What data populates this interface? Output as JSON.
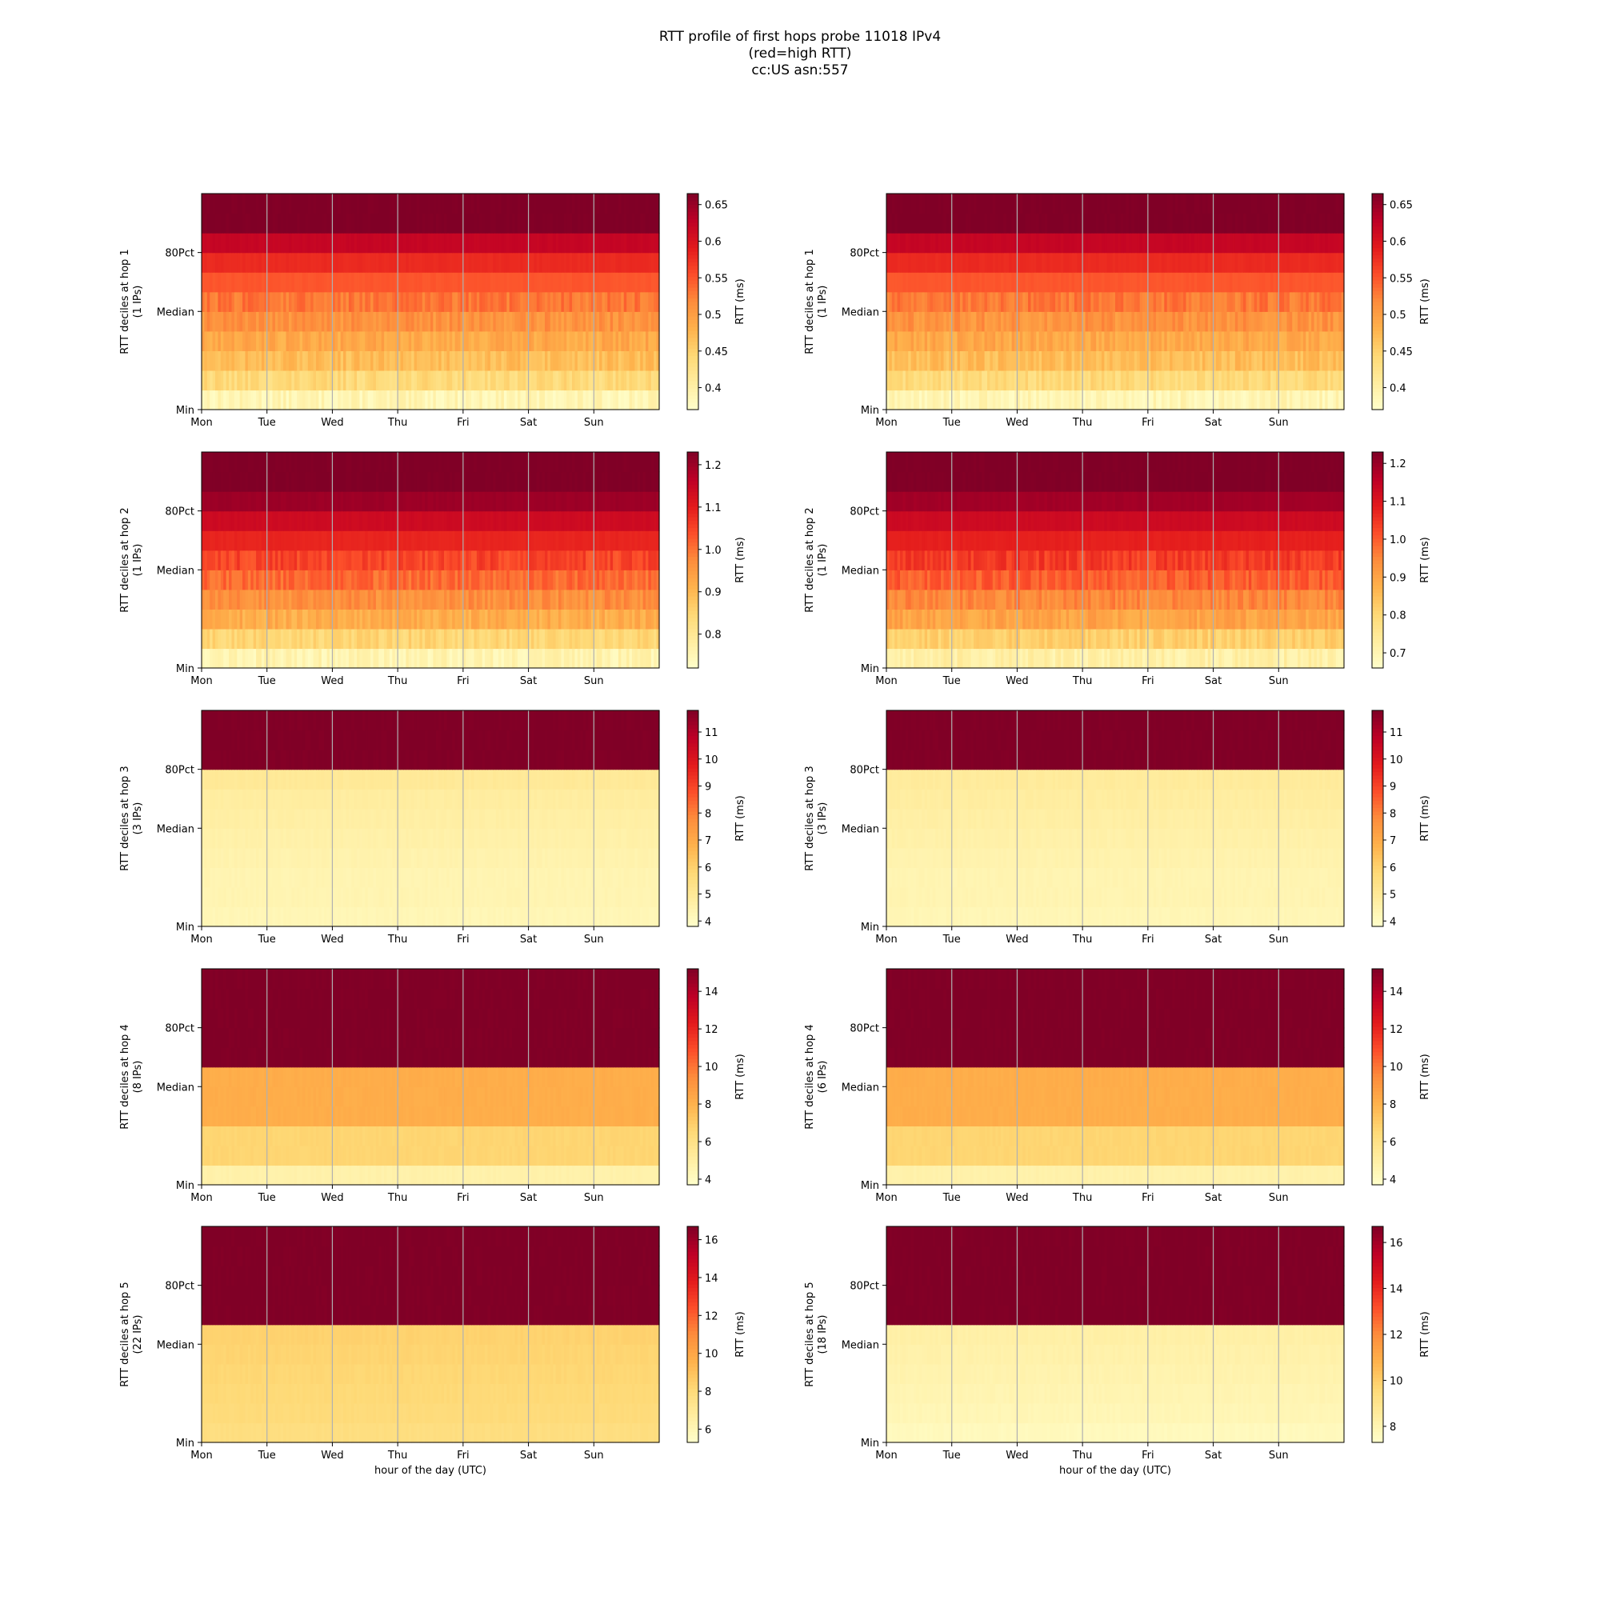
{
  "figure": {
    "title_lines": [
      "RTT profile of first hops probe 11018 IPv4",
      "(red=high RTT)",
      "cc:US asn:557"
    ]
  },
  "colorscale": {
    "name": "YlOrRd",
    "stops": [
      "#ffffcc",
      "#ffeda0",
      "#fed976",
      "#feb24c",
      "#fd8d3c",
      "#fc4e2a",
      "#e31a1c",
      "#bd0026",
      "#800026"
    ]
  },
  "chart_data": [
    {
      "type": "heatmap",
      "ylabel": "RTT deciles at hop 1",
      "ylabel2": "(1 IPs)",
      "colorbar_label": "RTT (ms)",
      "colorbar_ticks": [
        0.4,
        0.45,
        0.5,
        0.55,
        0.6,
        0.65
      ],
      "vmin": 0.37,
      "vmax": 0.665,
      "xticks": [
        "Mon",
        "Tue",
        "Wed",
        "Thu",
        "Fri",
        "Sat",
        "Sun"
      ],
      "yticks": [
        "Min",
        "Median",
        "80Pct"
      ],
      "xlabel": "",
      "decile_values": [
        0.39,
        0.44,
        0.47,
        0.49,
        0.51,
        0.53,
        0.55,
        0.58,
        0.62,
        0.665,
        0.665
      ]
    },
    {
      "type": "heatmap",
      "ylabel": "RTT deciles at hop 1",
      "ylabel2": "(1 IPs)",
      "colorbar_label": "RTT (ms)",
      "colorbar_ticks": [
        0.4,
        0.45,
        0.5,
        0.55,
        0.6,
        0.65
      ],
      "vmin": 0.37,
      "vmax": 0.665,
      "xticks": [
        "Mon",
        "Tue",
        "Wed",
        "Thu",
        "Fri",
        "Sat",
        "Sun"
      ],
      "yticks": [
        "Min",
        "Median",
        "80Pct"
      ],
      "xlabel": "",
      "decile_values": [
        0.39,
        0.44,
        0.47,
        0.49,
        0.51,
        0.53,
        0.55,
        0.58,
        0.62,
        0.665,
        0.665
      ]
    },
    {
      "type": "heatmap",
      "ylabel": "RTT deciles at hop 2",
      "ylabel2": "(1 IPs)",
      "colorbar_label": "RTT (ms)",
      "colorbar_ticks": [
        0.8,
        0.9,
        1.0,
        1.1,
        1.2
      ],
      "vmin": 0.72,
      "vmax": 1.23,
      "xticks": [
        "Mon",
        "Tue",
        "Wed",
        "Thu",
        "Fri",
        "Sat",
        "Sun"
      ],
      "yticks": [
        "Min",
        "Median",
        "80Pct"
      ],
      "xlabel": "",
      "decile_values": [
        0.76,
        0.85,
        0.92,
        0.97,
        1.01,
        1.05,
        1.09,
        1.14,
        1.2,
        1.23,
        1.23
      ]
    },
    {
      "type": "heatmap",
      "ylabel": "RTT deciles at hop 2",
      "ylabel2": "(1 IPs)",
      "colorbar_label": "RTT (ms)",
      "colorbar_ticks": [
        0.7,
        0.8,
        0.9,
        1.0,
        1.1,
        1.2
      ],
      "vmin": 0.66,
      "vmax": 1.23,
      "xticks": [
        "Mon",
        "Tue",
        "Wed",
        "Thu",
        "Fri",
        "Sat",
        "Sun"
      ],
      "yticks": [
        "Min",
        "Median",
        "80Pct"
      ],
      "xlabel": "",
      "decile_values": [
        0.72,
        0.82,
        0.9,
        0.95,
        1.0,
        1.04,
        1.08,
        1.13,
        1.19,
        1.23,
        1.23
      ]
    },
    {
      "type": "heatmap",
      "ylabel": "RTT deciles at hop 3",
      "ylabel2": "(3 IPs)",
      "colorbar_label": "RTT (ms)",
      "colorbar_ticks": [
        4,
        5,
        6,
        7,
        8,
        9,
        10,
        11
      ],
      "vmin": 3.8,
      "vmax": 11.8,
      "xticks": [
        "Mon",
        "Tue",
        "Wed",
        "Thu",
        "Fri",
        "Sat",
        "Sun"
      ],
      "yticks": [
        "Min",
        "Median",
        "80Pct"
      ],
      "xlabel": "",
      "decile_values": [
        4.3,
        4.4,
        4.4,
        4.5,
        4.6,
        4.7,
        4.8,
        5.0,
        11.8,
        11.8,
        11.8
      ]
    },
    {
      "type": "heatmap",
      "ylabel": "RTT deciles at hop 3",
      "ylabel2": "(3 IPs)",
      "colorbar_label": "RTT (ms)",
      "colorbar_ticks": [
        4,
        5,
        6,
        7,
        8,
        9,
        10,
        11
      ],
      "vmin": 3.8,
      "vmax": 11.8,
      "xticks": [
        "Mon",
        "Tue",
        "Wed",
        "Thu",
        "Fri",
        "Sat",
        "Sun"
      ],
      "yticks": [
        "Min",
        "Median",
        "80Pct"
      ],
      "xlabel": "",
      "decile_values": [
        4.3,
        4.4,
        4.4,
        4.5,
        4.6,
        4.7,
        4.8,
        4.9,
        11.8,
        11.8,
        11.8
      ]
    },
    {
      "type": "heatmap",
      "ylabel": "RTT deciles at hop 4",
      "ylabel2": "(8 IPs)",
      "colorbar_label": "RTT (ms)",
      "colorbar_ticks": [
        4,
        6,
        8,
        10,
        12,
        14
      ],
      "vmin": 3.7,
      "vmax": 15.2,
      "xticks": [
        "Mon",
        "Tue",
        "Wed",
        "Thu",
        "Fri",
        "Sat",
        "Sun"
      ],
      "yticks": [
        "Min",
        "Median",
        "80Pct"
      ],
      "xlabel": "",
      "decile_values": [
        4.8,
        6.7,
        6.7,
        8.2,
        8.2,
        8.2,
        15.2,
        15.2,
        15.2,
        15.2,
        15.2
      ]
    },
    {
      "type": "heatmap",
      "ylabel": "RTT deciles at hop 4",
      "ylabel2": "(6 IPs)",
      "colorbar_label": "RTT (ms)",
      "colorbar_ticks": [
        4,
        6,
        8,
        10,
        12,
        14
      ],
      "vmin": 3.7,
      "vmax": 15.2,
      "xticks": [
        "Mon",
        "Tue",
        "Wed",
        "Thu",
        "Fri",
        "Sat",
        "Sun"
      ],
      "yticks": [
        "Min",
        "Median",
        "80Pct"
      ],
      "xlabel": "",
      "decile_values": [
        4.8,
        6.7,
        6.7,
        8.2,
        8.2,
        8.2,
        15.2,
        15.2,
        15.2,
        15.2,
        15.2
      ]
    },
    {
      "type": "heatmap",
      "ylabel": "RTT deciles at hop 5",
      "ylabel2": "(22 IPs)",
      "colorbar_label": "RTT (ms)",
      "colorbar_ticks": [
        6,
        8,
        10,
        12,
        14,
        16
      ],
      "vmin": 5.3,
      "vmax": 16.7,
      "xticks": [
        "Mon",
        "Tue",
        "Wed",
        "Thu",
        "Fri",
        "Sat",
        "Sun"
      ],
      "yticks": [
        "Min",
        "Median",
        "80Pct"
      ],
      "xlabel": "hour of the day (UTC)",
      "decile_values": [
        7.8,
        8.0,
        8.1,
        8.2,
        8.3,
        8.4,
        16.7,
        16.7,
        16.7,
        16.7,
        16.7
      ]
    },
    {
      "type": "heatmap",
      "ylabel": "RTT deciles at hop 5",
      "ylabel2": "(18 IPs)",
      "colorbar_label": "RTT (ms)",
      "colorbar_ticks": [
        8,
        10,
        12,
        14,
        16
      ],
      "vmin": 7.3,
      "vmax": 16.7,
      "xticks": [
        "Mon",
        "Tue",
        "Wed",
        "Thu",
        "Fri",
        "Sat",
        "Sun"
      ],
      "yticks": [
        "Min",
        "Median",
        "80Pct"
      ],
      "xlabel": "hour of the day (UTC)",
      "decile_values": [
        7.7,
        7.9,
        8.0,
        8.1,
        8.2,
        8.3,
        16.7,
        16.7,
        16.7,
        16.7,
        16.7
      ]
    }
  ]
}
